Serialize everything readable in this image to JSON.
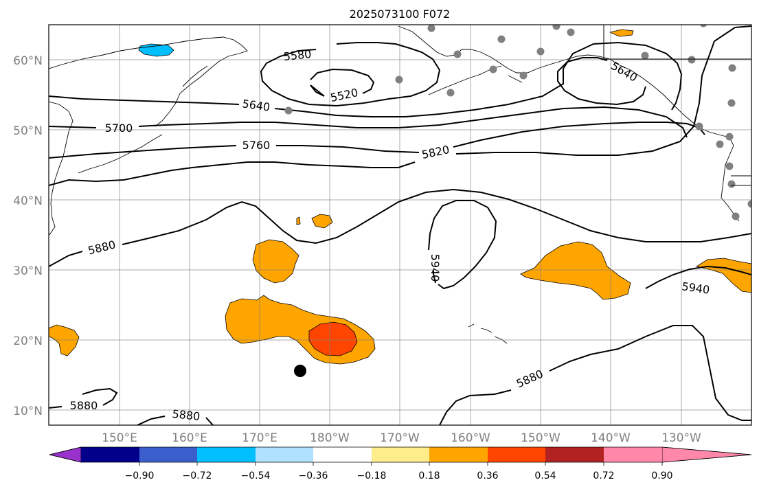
{
  "title": "2025073100 F072",
  "lat_labels": [
    "60°N",
    "50°N",
    "40°N",
    "30°N",
    "20°N",
    "10°N"
  ],
  "lon_labels": [
    "150°E",
    "160°E",
    "170°E",
    "180°W",
    "170°W",
    "160°W",
    "150°W",
    "140°W",
    "130°W"
  ],
  "contour_labels": [
    "5520",
    "5580",
    "5640",
    "5640",
    "5700",
    "5760",
    "5820",
    "5880",
    "5880",
    "5880",
    "5880",
    "5940",
    "5940"
  ],
  "colorbar": {
    "ticks": [
      "−0.90",
      "−0.72",
      "−0.54",
      "−0.36",
      "−0.18",
      "0.18",
      "0.36",
      "0.54",
      "0.72",
      "0.90"
    ],
    "colors": [
      "#9932cc",
      "#00008b",
      "#3a5fcd",
      "#00bfff",
      "#b0e2ff",
      "#ffffff",
      "#ffec8b",
      "#ffa500",
      "#ff4500",
      "#b22222",
      "#ff88aa"
    ]
  },
  "fill_colors": {
    "orange": "#ffa500",
    "red_orange": "#ff4500",
    "blue": "#00bfff"
  },
  "station_color": "#808080"
}
